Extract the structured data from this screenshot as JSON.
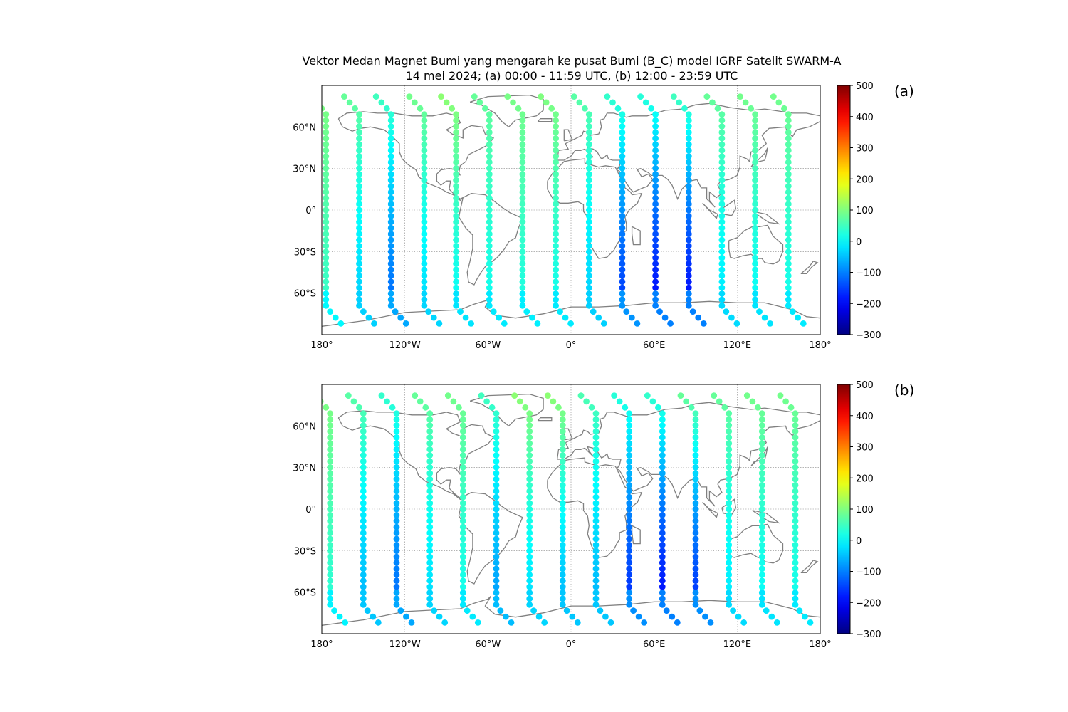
{
  "title_lines": [
    "Vektor Medan Magnet Bumi yang mengarah ke pusat Bumi (B_C) model IGRF Satelit SWARM-A",
    "14 mei 2024; (a) 00:00 - 11:59 UTC, (b) 12:00 - 23:59 UTC"
  ],
  "chart_data": [
    {
      "type": "scatter",
      "panel_label": "(a)",
      "x_ticks": [
        "180°",
        "120°W",
        "60°W",
        "0°",
        "60°E",
        "120°E",
        "180°"
      ],
      "y_ticks": [
        "60°N",
        "30°N",
        "0°",
        "30°S",
        "60°S"
      ],
      "xlim": [
        -180,
        180
      ],
      "ylim": [
        -90,
        90
      ],
      "grid": true,
      "basemap": "world coastlines",
      "colorbar": {
        "colormap": "jet",
        "range": [
          -300,
          500
        ],
        "ticks": [
          "500",
          "400",
          "300",
          "200",
          "100",
          "0",
          "−100",
          "−200",
          "−300"
        ]
      },
      "tracks": [
        {
          "lon": -177,
          "b_min": 40,
          "b_max": 100
        },
        {
          "lon": -153,
          "b_min": -40,
          "b_max": 80
        },
        {
          "lon": -130,
          "b_min": -120,
          "b_max": 50
        },
        {
          "lon": -106,
          "b_min": -30,
          "b_max": 90
        },
        {
          "lon": -83,
          "b_min": 0,
          "b_max": 110
        },
        {
          "lon": -59,
          "b_min": 10,
          "b_max": 80
        },
        {
          "lon": -35,
          "b_min": 20,
          "b_max": 95
        },
        {
          "lon": -11,
          "b_min": 10,
          "b_max": 100
        },
        {
          "lon": 13,
          "b_min": -40,
          "b_max": 70
        },
        {
          "lon": 37,
          "b_min": -160,
          "b_max": 40
        },
        {
          "lon": 61,
          "b_min": -200,
          "b_max": 30
        },
        {
          "lon": 85,
          "b_min": -200,
          "b_max": 50
        },
        {
          "lon": 109,
          "b_min": -20,
          "b_max": 80
        },
        {
          "lon": 133,
          "b_min": 0,
          "b_max": 90
        },
        {
          "lon": 157,
          "b_min": 10,
          "b_max": 90
        }
      ]
    },
    {
      "type": "scatter",
      "panel_label": "(b)",
      "x_ticks": [
        "180°",
        "120°W",
        "60°W",
        "0°",
        "60°E",
        "120°E",
        "180°"
      ],
      "y_ticks": [
        "60°N",
        "30°N",
        "0°",
        "30°S",
        "60°S"
      ],
      "xlim": [
        -180,
        180
      ],
      "ylim": [
        -90,
        90
      ],
      "grid": true,
      "basemap": "world coastlines",
      "colorbar": {
        "colormap": "jet",
        "range": [
          -300,
          500
        ],
        "ticks": [
          "500",
          "400",
          "300",
          "200",
          "100",
          "0",
          "−100",
          "−200",
          "−300"
        ]
      },
      "tracks": [
        {
          "lon": -174,
          "b_min": 30,
          "b_max": 100
        },
        {
          "lon": -150,
          "b_min": -60,
          "b_max": 70
        },
        {
          "lon": -126,
          "b_min": -120,
          "b_max": 40
        },
        {
          "lon": -102,
          "b_min": -30,
          "b_max": 80
        },
        {
          "lon": -78,
          "b_min": 10,
          "b_max": 90
        },
        {
          "lon": -54,
          "b_min": -80,
          "b_max": 50
        },
        {
          "lon": -30,
          "b_min": -30,
          "b_max": 110
        },
        {
          "lon": -6,
          "b_min": -60,
          "b_max": 110
        },
        {
          "lon": 18,
          "b_min": -60,
          "b_max": 60
        },
        {
          "lon": 42,
          "b_min": -170,
          "b_max": 30
        },
        {
          "lon": 66,
          "b_min": -200,
          "b_max": 40
        },
        {
          "lon": 90,
          "b_min": -170,
          "b_max": 80
        },
        {
          "lon": 114,
          "b_min": -20,
          "b_max": 80
        },
        {
          "lon": 138,
          "b_min": 0,
          "b_max": 90
        },
        {
          "lon": 162,
          "b_min": 10,
          "b_max": 90
        }
      ]
    }
  ]
}
